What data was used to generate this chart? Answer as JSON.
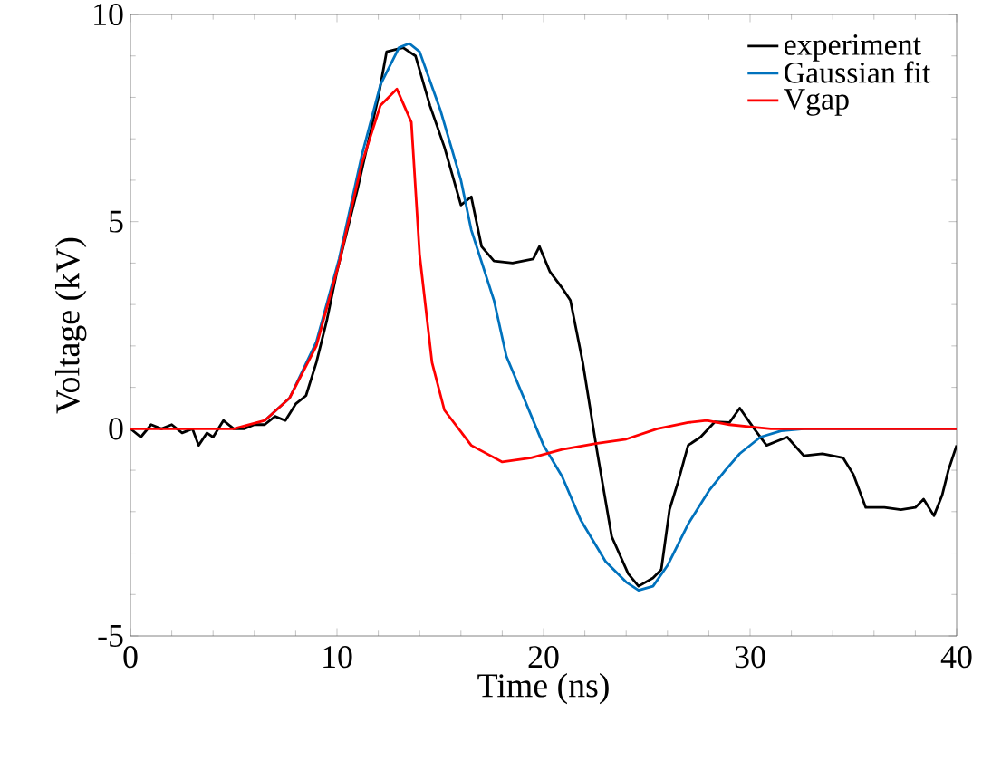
{
  "chart_data": {
    "type": "line",
    "xlabel": "Time (ns)",
    "ylabel": "Voltage (kV)",
    "xlim": [
      0,
      40
    ],
    "ylim": [
      -5,
      10
    ],
    "xticks": [
      0,
      10,
      20,
      30,
      40
    ],
    "yticks": [
      -5,
      0,
      5,
      10
    ],
    "legend": "top right",
    "grid": false,
    "series": [
      {
        "name": "experiment",
        "color": "#000000",
        "x": [
          0,
          0.5,
          1,
          1.5,
          2,
          2.5,
          3,
          3.3,
          3.7,
          4,
          4.5,
          5,
          5.5,
          6,
          6.5,
          7,
          7.5,
          8,
          8.5,
          9,
          9.5,
          10,
          10.5,
          11,
          11.5,
          12,
          12.4,
          13.2,
          13.8,
          14.5,
          15.2,
          16,
          16.5,
          17,
          17.6,
          18.5,
          19.5,
          19.8,
          20.3,
          20.9,
          21.3,
          21.9,
          22.6,
          23.3,
          24.1,
          24.6,
          25.3,
          25.7,
          26.1,
          26.5,
          27,
          27.6,
          28.3,
          29,
          29.5,
          30.2,
          30.8,
          31.3,
          31.8,
          32.6,
          33.5,
          34.5,
          35,
          35.6,
          36.5,
          37.3,
          38,
          38.4,
          38.9,
          39.3,
          39.6,
          40
        ],
        "values": [
          0,
          -0.2,
          0.1,
          0,
          0.1,
          -0.1,
          0,
          -0.4,
          -0.1,
          -0.2,
          0.2,
          0,
          0,
          0.1,
          0.1,
          0.3,
          0.2,
          0.6,
          0.8,
          1.6,
          2.6,
          3.8,
          4.8,
          5.8,
          6.9,
          8.0,
          9.1,
          9.2,
          9.0,
          7.8,
          6.8,
          5.4,
          5.6,
          4.4,
          4.05,
          4.0,
          4.1,
          4.4,
          3.8,
          3.4,
          3.1,
          1.6,
          -0.57,
          -2.6,
          -3.5,
          -3.8,
          -3.6,
          -3.4,
          -1.95,
          -1.3,
          -0.4,
          -0.2,
          0.17,
          0.15,
          0.5,
          0,
          -0.4,
          -0.3,
          -0.2,
          -0.65,
          -0.6,
          -0.7,
          -1.1,
          -1.9,
          -1.9,
          -1.95,
          -1.9,
          -1.7,
          -2.1,
          -1.6,
          -1.0,
          -0.4
        ]
      },
      {
        "name": "Gaussian fit",
        "color": "#0072bd",
        "x": [
          6.5,
          7.7,
          9,
          10.1,
          11.2,
          12.1,
          13,
          13.5,
          14,
          15,
          16,
          16.5,
          17.6,
          18.2,
          19,
          20,
          20.9,
          21.8,
          23,
          24,
          24.6,
          25.3,
          26,
          27,
          28,
          28.8,
          29.5,
          30.5,
          31.5,
          32.6,
          40
        ],
        "values": [
          0.2,
          0.74,
          2.1,
          4.1,
          6.6,
          8.3,
          9.2,
          9.3,
          9.1,
          7.7,
          6.0,
          4.8,
          3.1,
          1.75,
          0.8,
          -0.4,
          -1.15,
          -2.2,
          -3.2,
          -3.7,
          -3.9,
          -3.8,
          -3.3,
          -2.3,
          -1.5,
          -1.0,
          -0.6,
          -0.2,
          -0.05,
          0,
          0
        ]
      },
      {
        "name": "Vgap",
        "color": "#ff0000",
        "x": [
          0,
          5,
          6.5,
          7.7,
          9,
          10.1,
          11.2,
          12.1,
          12.9,
          13.6,
          14,
          14.6,
          15.2,
          16.5,
          18,
          19.4,
          20.9,
          22.6,
          24,
          25.5,
          27,
          27.9,
          29,
          30,
          31,
          40
        ],
        "values": [
          0,
          0,
          0.2,
          0.74,
          2.0,
          4.0,
          6.4,
          7.8,
          8.2,
          7.4,
          4.2,
          1.6,
          0.45,
          -0.4,
          -0.8,
          -0.7,
          -0.5,
          -0.35,
          -0.25,
          0,
          0.15,
          0.2,
          0.1,
          0.05,
          0,
          0
        ]
      }
    ]
  }
}
